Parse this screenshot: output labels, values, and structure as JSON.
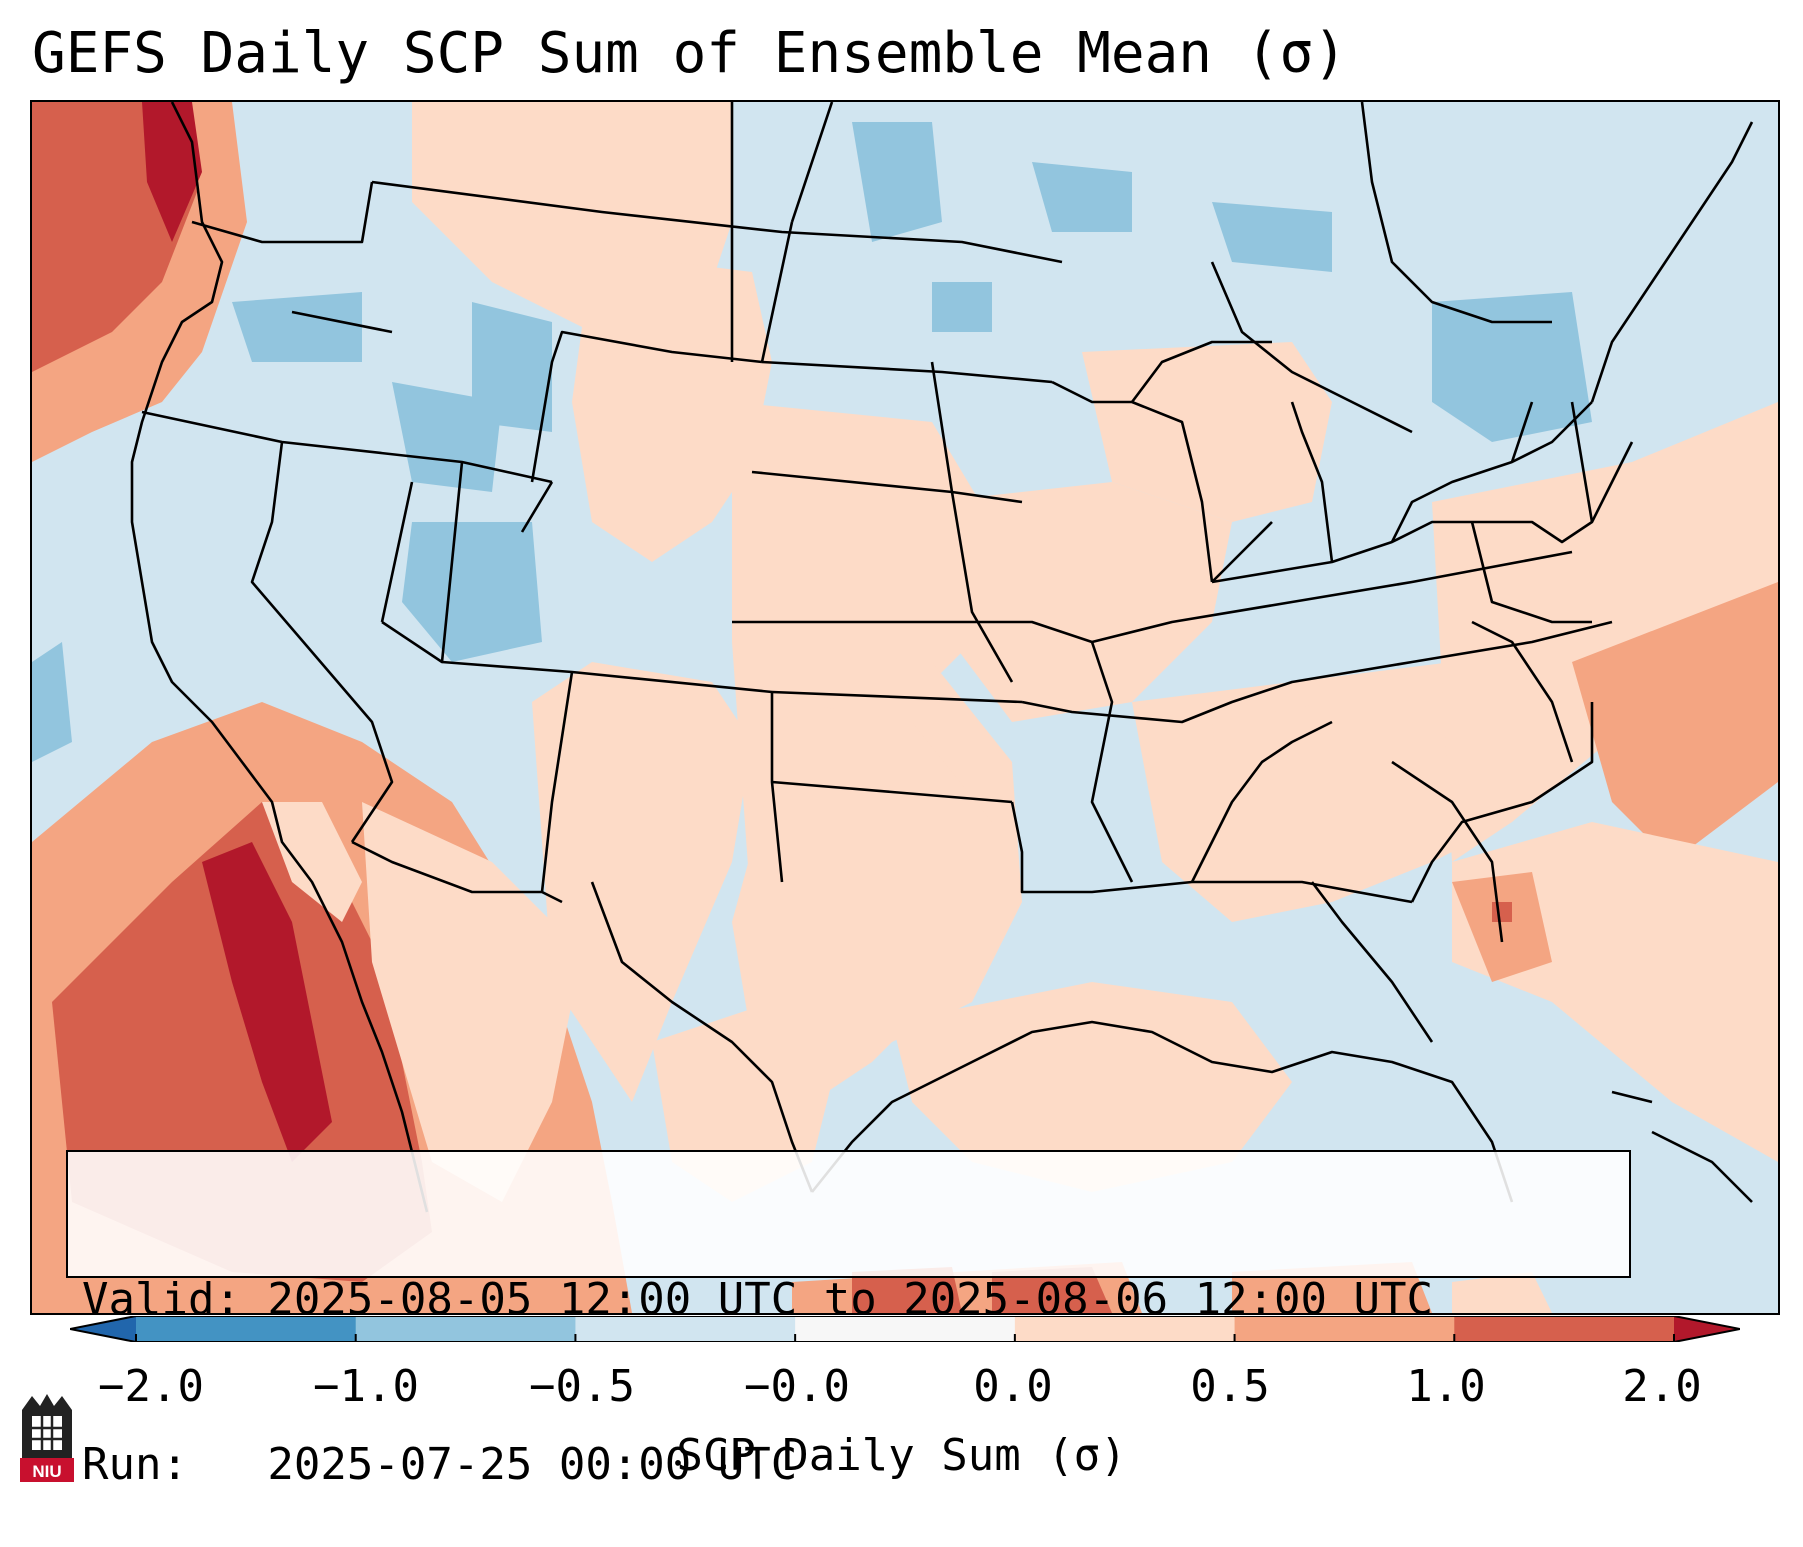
{
  "title": "GEFS Daily SCP Sum of Ensemble Mean (σ)",
  "info": {
    "valid": "Valid: 2025-08-05 12:00 UTC to 2025-08-06 12:00 UTC",
    "run": "Run:   2025-07-25 00:00 UTC"
  },
  "colorbar": {
    "label": "SCP Daily Sum (σ)",
    "ticks": [
      "−2.0",
      "−1.0",
      "−0.5",
      "−0.0",
      "0.0",
      "0.5",
      "1.0",
      "2.0"
    ],
    "bin_colors": [
      "#4393c3",
      "#92c5de",
      "#d1e5f0",
      "#f7f7f7",
      "#fddbc7",
      "#f4a582",
      "#d6604d"
    ],
    "extend_low_color": "#2166ac",
    "extend_high_color": "#b2182b"
  },
  "logo": {
    "text": "NIU"
  }
}
